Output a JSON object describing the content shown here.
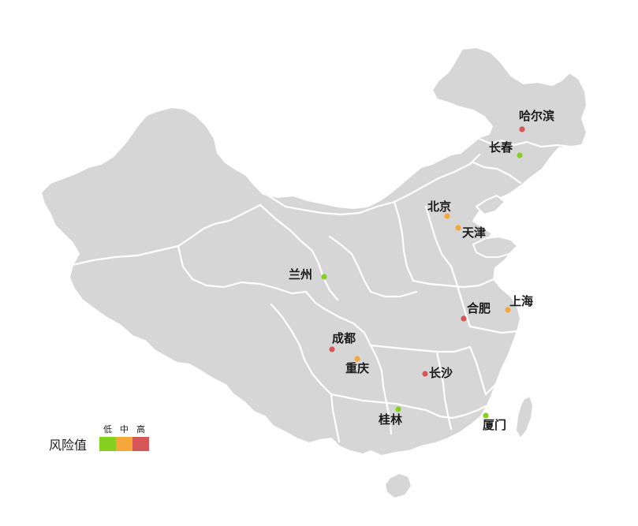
{
  "map": {
    "colors": {
      "land": "#d6d6d6",
      "border": "#ffffff",
      "low": "#86d11f",
      "medium": "#f5a73a",
      "high": "#d45656"
    },
    "cities": [
      {
        "id": "harbin",
        "name": "哈尔滨",
        "risk": "high"
      },
      {
        "id": "changchun",
        "name": "长春",
        "risk": "low"
      },
      {
        "id": "beijing",
        "name": "北京",
        "risk": "medium"
      },
      {
        "id": "tianjin",
        "name": "天津",
        "risk": "medium"
      },
      {
        "id": "lanzhou",
        "name": "兰州",
        "risk": "low"
      },
      {
        "id": "hefei",
        "name": "合肥",
        "risk": "high"
      },
      {
        "id": "shanghai",
        "name": "上海",
        "risk": "medium"
      },
      {
        "id": "chengdu",
        "name": "成都",
        "risk": "high"
      },
      {
        "id": "chongqing",
        "name": "重庆",
        "risk": "medium"
      },
      {
        "id": "changsha",
        "name": "长沙",
        "risk": "high"
      },
      {
        "id": "guilin",
        "name": "桂林",
        "risk": "low"
      },
      {
        "id": "xiamen",
        "name": "厦门",
        "risk": "low"
      }
    ]
  },
  "legend": {
    "title": "风险值",
    "levels": [
      {
        "key": "low",
        "label": "低"
      },
      {
        "key": "medium",
        "label": "中"
      },
      {
        "key": "high",
        "label": "高"
      }
    ]
  }
}
